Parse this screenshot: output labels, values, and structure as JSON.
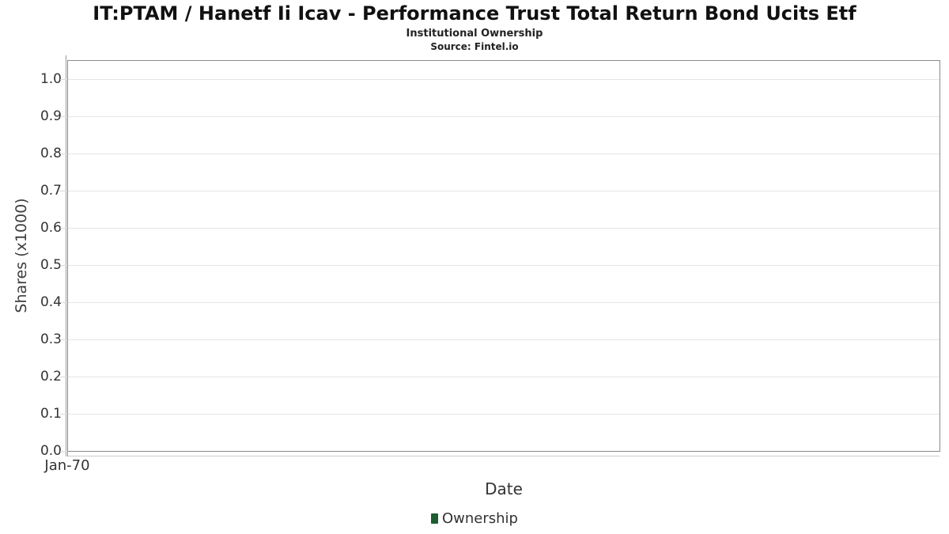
{
  "title": "IT:PTAM / Hanetf Ii Icav - Performance Trust Total Return Bond Ucits Etf",
  "subtitle": "Institutional Ownership",
  "source": "Source: Fintel.io",
  "chart_data": {
    "type": "bar",
    "title": "IT:PTAM / Hanetf Ii Icav - Performance Trust Total Return Bond Ucits Etf",
    "subtitle": "Institutional Ownership",
    "source": "Source: Fintel.io",
    "xlabel": "Date",
    "ylabel": "Shares (x1000)",
    "x_tick_labels": [
      "Jan-70"
    ],
    "y_ticks": [
      0.0,
      0.1,
      0.2,
      0.3,
      0.4,
      0.5,
      0.6,
      0.7,
      0.8,
      0.9,
      1.0
    ],
    "y_tick_labels": [
      "0.0",
      "0.1",
      "0.2",
      "0.3",
      "0.4",
      "0.5",
      "0.6",
      "0.7",
      "0.8",
      "0.9",
      "1.0"
    ],
    "ylim": [
      0,
      1.05
    ],
    "grid": true,
    "legend_position": "bottom",
    "series": [
      {
        "name": "Ownership",
        "color": "#1e5c31",
        "x": [],
        "values": []
      }
    ]
  },
  "colors": {
    "legend_marker": "#1e5c31",
    "grid": "#e6e6e6",
    "tick": "#d9d9d9",
    "plot_border": "#8a8a8a",
    "axis_line": "#cccccc",
    "text": "#333333"
  }
}
